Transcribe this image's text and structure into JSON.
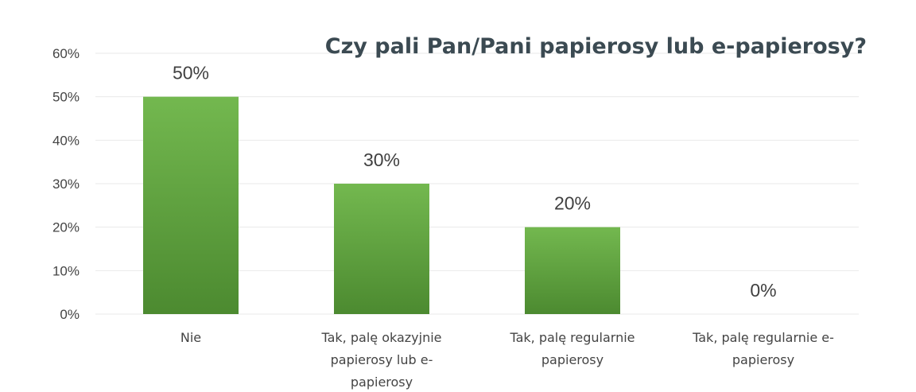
{
  "chart_data": {
    "type": "bar",
    "title": "Czy pali Pan/Pani papierosy lub e-papierosy?",
    "xlabel": "",
    "ylabel": "",
    "categories": [
      [
        "Nie"
      ],
      [
        "Tak, palę okazyjnie",
        "papierosy lub e-",
        "papierosy"
      ],
      [
        "Tak, palę regularnie",
        "papierosy"
      ],
      [
        "Tak, palę regularnie e-",
        "papierosy"
      ]
    ],
    "values": [
      50,
      30,
      20,
      0
    ],
    "value_labels": [
      "50%",
      "30%",
      "20%",
      "0%"
    ],
    "y_ticks": [
      "0%",
      "10%",
      "20%",
      "30%",
      "40%",
      "50%",
      "60%"
    ],
    "y_tick_values": [
      0,
      10,
      20,
      30,
      40,
      50,
      60
    ],
    "ylim": [
      0,
      60
    ],
    "grid": true,
    "legend": "none",
    "colors": {
      "bar_top": "#73b84f",
      "bar_bottom": "#4c8a30",
      "gridline": "#e9e9e9",
      "title": "#3b4a52",
      "text": "#444444"
    }
  }
}
